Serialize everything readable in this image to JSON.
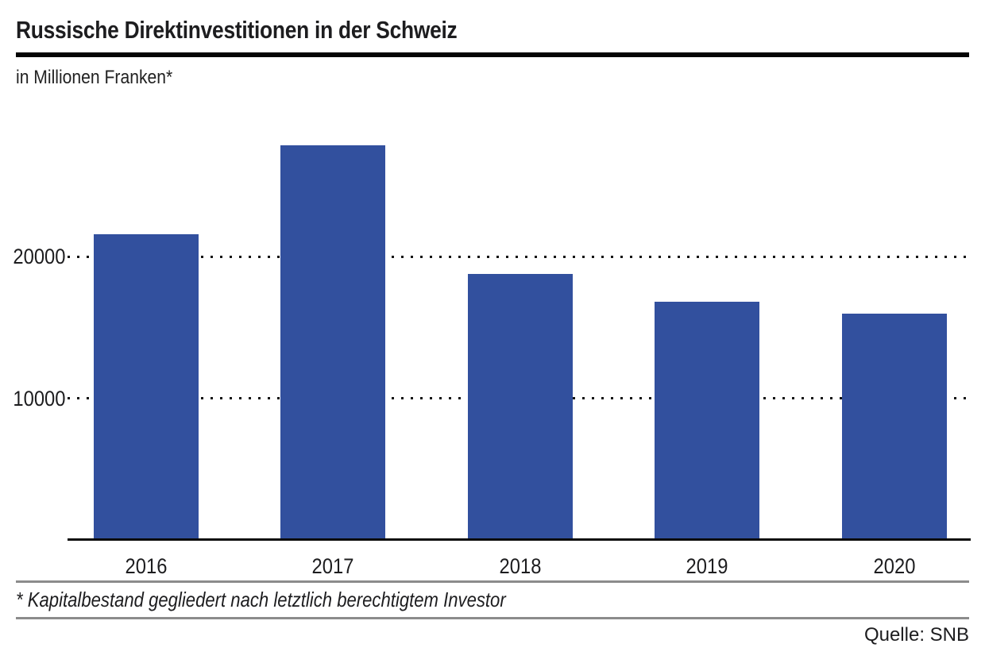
{
  "header": {
    "title": "Russische Direktinvestitionen in der Schweiz",
    "subtitle": "in Millionen Franken*"
  },
  "chart_data": {
    "type": "bar",
    "title": "Russische Direktinvestitionen in der Schweiz",
    "subtitle": "in Millionen Franken*",
    "unit": "Millionen Franken (CHF)",
    "categories": [
      "2016",
      "2017",
      "2018",
      "2019",
      "2020"
    ],
    "values": [
      21500,
      27800,
      18700,
      16750,
      15900
    ],
    "xlabel": "",
    "ylabel": "",
    "ylim": [
      0,
      29700
    ],
    "yticks": [
      10000,
      20000
    ],
    "grid": "horizontal-dotted",
    "legend_position": "none",
    "bar_color": "#32509e"
  },
  "footer": {
    "footnote": "* Kapitalbestand gegliedert nach letztlich berechtigtem Investor",
    "source": "Quelle: SNB"
  },
  "colors": {
    "bar": "#32509e",
    "title_rule": "#050505",
    "axis": "#0c0c0c",
    "gridline": "#141414",
    "divider_gray": "#8c8c8c",
    "text": "#1d1d1f"
  }
}
